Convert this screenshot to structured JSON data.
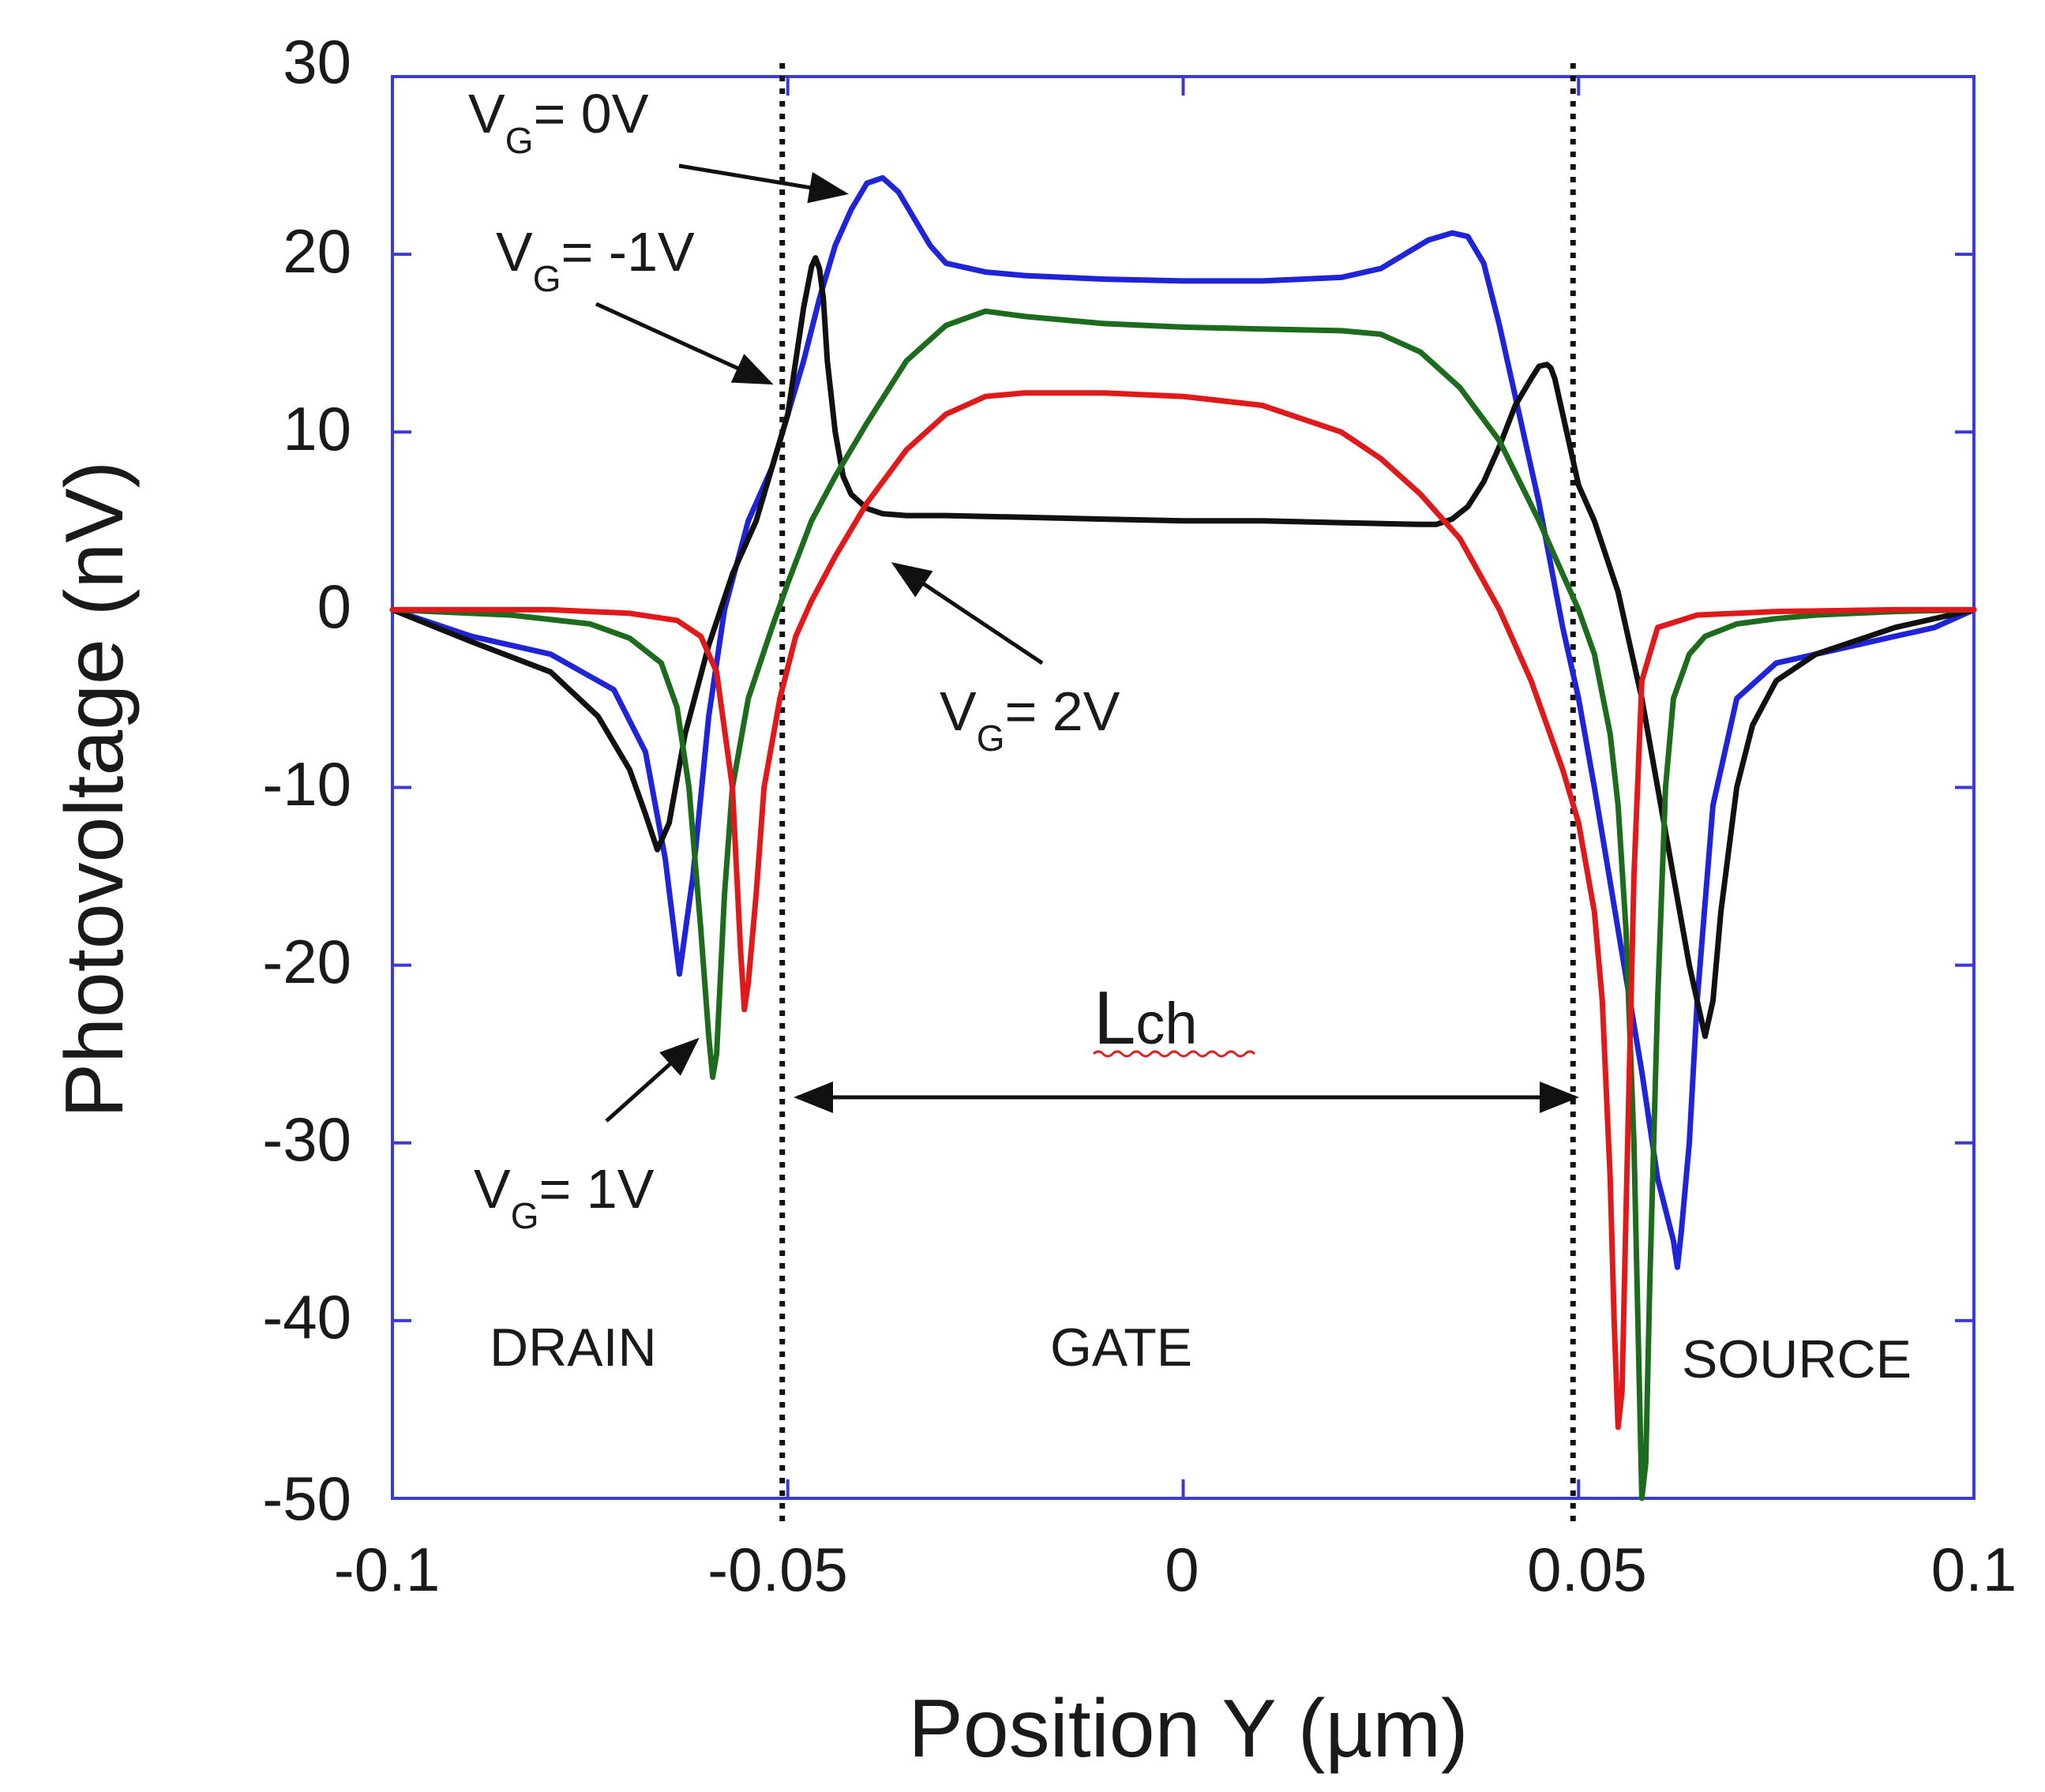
{
  "chart_data": {
    "type": "line",
    "title": "",
    "xlabel": "Position Y  (µm)",
    "ylabel": "Photovoltage (nV)",
    "xlim": [
      -0.1,
      0.1
    ],
    "ylim": [
      -50,
      30
    ],
    "xticks": [
      -0.1,
      -0.05,
      0,
      0.05,
      0.1
    ],
    "xtick_labels": [
      "-0.1",
      "-0.05",
      "0",
      "0.05",
      "0.1"
    ],
    "yticks": [
      30,
      20,
      10,
      0,
      -10,
      -20,
      -30,
      -40,
      -50
    ],
    "ytick_labels": [
      "30",
      "20",
      "10",
      "0",
      "-10",
      "-20",
      "-30",
      "-40",
      "-50"
    ],
    "frame_color": "#3a3ad6",
    "vlines": [
      -0.05,
      0.05
    ],
    "series": [
      {
        "name": "VG = 0V",
        "color": "#1f24d8",
        "x": [
          -0.1,
          -0.09,
          -0.08,
          -0.072,
          -0.068,
          -0.0655,
          -0.0637,
          -0.062,
          -0.06,
          -0.058,
          -0.055,
          -0.052,
          -0.05,
          -0.048,
          -0.046,
          -0.044,
          -0.042,
          -0.04,
          -0.038,
          -0.036,
          -0.034,
          -0.032,
          -0.03,
          -0.025,
          -0.02,
          -0.015,
          -0.01,
          0,
          0.01,
          0.02,
          0.025,
          0.028,
          0.031,
          0.034,
          0.036,
          0.038,
          0.04,
          0.042,
          0.045,
          0.048,
          0.05,
          0.052,
          0.055,
          0.058,
          0.06,
          0.062,
          0.0625,
          0.063,
          0.064,
          0.065,
          0.067,
          0.07,
          0.075,
          0.08,
          0.085,
          0.09,
          0.095,
          0.1
        ],
        "y": [
          0,
          -1.5,
          -2.5,
          -4.5,
          -8,
          -14,
          -20.5,
          -15,
          -6,
          0,
          5,
          8,
          11,
          14,
          17.5,
          20.5,
          22.5,
          24,
          24.3,
          23.5,
          22,
          20.5,
          19.5,
          19,
          18.8,
          18.7,
          18.6,
          18.5,
          18.5,
          18.7,
          19.2,
          20,
          20.8,
          21.2,
          21,
          19.5,
          16,
          12,
          6,
          -1,
          -5,
          -10,
          -18,
          -26,
          -32,
          -35.5,
          -37,
          -35,
          -30,
          -22,
          -11,
          -5,
          -3,
          -2.5,
          -2,
          -1.5,
          -1,
          0
        ]
      },
      {
        "name": "VG = -1V",
        "color": "#111111",
        "x": [
          -0.1,
          -0.09,
          -0.08,
          -0.074,
          -0.07,
          -0.068,
          -0.0665,
          -0.065,
          -0.063,
          -0.06,
          -0.057,
          -0.054,
          -0.052,
          -0.05,
          -0.049,
          -0.048,
          -0.047,
          -0.0465,
          -0.046,
          -0.0455,
          -0.045,
          -0.044,
          -0.043,
          -0.042,
          -0.04,
          -0.038,
          -0.035,
          -0.03,
          -0.02,
          -0.01,
          0,
          0.01,
          0.02,
          0.03,
          0.032,
          0.034,
          0.036,
          0.038,
          0.04,
          0.042,
          0.044,
          0.045,
          0.046,
          0.0465,
          0.047,
          0.048,
          0.05,
          0.052,
          0.055,
          0.058,
          0.06,
          0.062,
          0.064,
          0.0655,
          0.066,
          0.067,
          0.068,
          0.07,
          0.072,
          0.075,
          0.08,
          0.09,
          0.1
        ],
        "y": [
          0,
          -1.8,
          -3.5,
          -6,
          -9,
          -11.5,
          -13.5,
          -12,
          -7,
          -2,
          2,
          5,
          8,
          11,
          14,
          17,
          19.3,
          19.8,
          19.2,
          17.5,
          14,
          10,
          7.5,
          6.5,
          5.7,
          5.4,
          5.3,
          5.3,
          5.2,
          5.1,
          5,
          5,
          4.9,
          4.8,
          4.8,
          5.1,
          5.8,
          7.2,
          9.2,
          11.5,
          13,
          13.7,
          13.8,
          13.6,
          13,
          11,
          7,
          5,
          1,
          -5,
          -10,
          -15,
          -20,
          -23,
          -24,
          -22,
          -17,
          -10,
          -6.5,
          -4,
          -2.5,
          -1,
          0
        ]
      },
      {
        "name": "VG = 1V",
        "color": "#1d6b1d",
        "x": [
          -0.1,
          -0.085,
          -0.075,
          -0.07,
          -0.066,
          -0.064,
          -0.0625,
          -0.061,
          -0.06,
          -0.0595,
          -0.059,
          -0.058,
          -0.057,
          -0.055,
          -0.052,
          -0.05,
          -0.047,
          -0.044,
          -0.04,
          -0.035,
          -0.03,
          -0.025,
          -0.02,
          -0.01,
          0,
          0.01,
          0.02,
          0.025,
          0.03,
          0.035,
          0.04,
          0.045,
          0.048,
          0.05,
          0.052,
          0.054,
          0.055,
          0.056,
          0.057,
          0.0575,
          0.058,
          0.0585,
          0.059,
          0.06,
          0.061,
          0.062,
          0.064,
          0.066,
          0.07,
          0.075,
          0.08,
          0.09,
          0.1
        ],
        "y": [
          0,
          -0.3,
          -0.8,
          -1.6,
          -3,
          -5.5,
          -10,
          -18,
          -24,
          -26.3,
          -25,
          -16,
          -10,
          -5,
          -1,
          1.5,
          5,
          7.5,
          10.5,
          14,
          16,
          16.8,
          16.5,
          16.1,
          15.9,
          15.8,
          15.7,
          15.5,
          14.5,
          12.5,
          9.5,
          5,
          2,
          0,
          -2.5,
          -7,
          -11,
          -18,
          -30,
          -40,
          -50,
          -48,
          -38,
          -22,
          -10,
          -5,
          -2.5,
          -1.5,
          -0.8,
          -0.5,
          -0.3,
          -0.1,
          0
        ]
      },
      {
        "name": "VG = 2V",
        "color": "#e01a1a",
        "x": [
          -0.1,
          -0.08,
          -0.07,
          -0.064,
          -0.061,
          -0.059,
          -0.057,
          -0.056,
          -0.0555,
          -0.055,
          -0.054,
          -0.053,
          -0.051,
          -0.049,
          -0.047,
          -0.044,
          -0.04,
          -0.035,
          -0.03,
          -0.025,
          -0.02,
          -0.01,
          0,
          0.01,
          0.02,
          0.025,
          0.03,
          0.035,
          0.04,
          0.044,
          0.048,
          0.05,
          0.052,
          0.053,
          0.054,
          0.0545,
          0.055,
          0.0555,
          0.056,
          0.057,
          0.058,
          0.06,
          0.065,
          0.075,
          0.09,
          0.1
        ],
        "y": [
          0,
          0,
          -0.2,
          -0.6,
          -1.5,
          -3.5,
          -10,
          -19,
          -22.5,
          -21,
          -16,
          -10,
          -5,
          -1.5,
          0.5,
          3,
          6,
          9,
          11,
          12,
          12.2,
          12.2,
          12,
          11.5,
          10,
          8.5,
          6.5,
          4,
          0,
          -4,
          -9,
          -12,
          -17,
          -22,
          -32,
          -40,
          -46,
          -44,
          -34,
          -15,
          -4,
          -1,
          -0.3,
          -0.1,
          0,
          0
        ]
      }
    ],
    "annotations": {
      "vg0": {
        "prefix": "V",
        "sub": "G",
        "rest": "= 0V"
      },
      "vgm1": {
        "prefix": "V",
        "sub": "G",
        "rest": "= -1V"
      },
      "vg2": {
        "prefix": "V",
        "sub": "G",
        "rest": "= 2V"
      },
      "vg1": {
        "prefix": "V",
        "sub": "G",
        "rest": "= 1V"
      },
      "lch": {
        "main": "L",
        "sub": "ch"
      }
    },
    "regions": {
      "drain": "DRAIN",
      "gate": "GATE",
      "source": "SOURCE"
    }
  }
}
